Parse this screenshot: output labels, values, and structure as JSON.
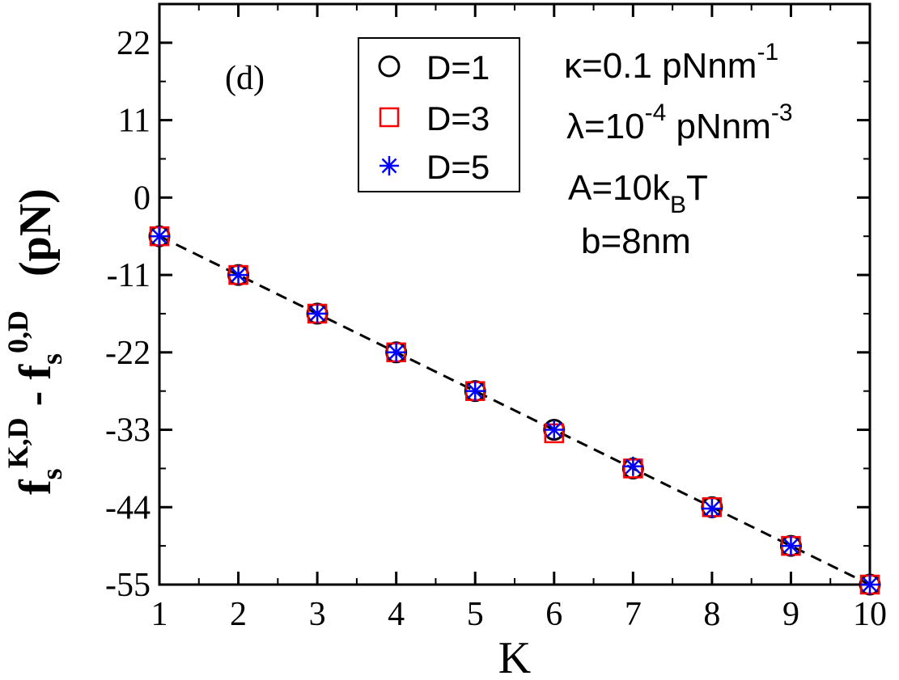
{
  "chart_data": {
    "type": "scatter",
    "panel_label": "(d)",
    "xlabel": "K",
    "ylabel": {
      "f1": "f",
      "sub1": "s",
      "sup1": "K,D",
      "minus": " - ",
      "f2": "f",
      "sub2": "s",
      "sup2": "0,D",
      "unit": "(pN)"
    },
    "xlim": [
      1,
      10
    ],
    "ylim": [
      -55,
      27.5
    ],
    "x_ticks": [
      1,
      2,
      3,
      4,
      5,
      6,
      7,
      8,
      9,
      10
    ],
    "y_ticks": [
      -55,
      -44,
      -33,
      -22,
      -11,
      0,
      11,
      22
    ],
    "fit_line": {
      "style": "dashed",
      "color": "#000000",
      "x": [
        1,
        10
      ],
      "y": [
        -5.5,
        -55
      ]
    },
    "series": [
      {
        "name": "D=1",
        "marker": "circle",
        "color": "#000000",
        "x": [
          1,
          2,
          3,
          4,
          5,
          6,
          7,
          8,
          9,
          10
        ],
        "y": [
          -5.5,
          -11,
          -16.5,
          -22,
          -27.5,
          -33,
          -38.5,
          -44,
          -49.5,
          -55
        ]
      },
      {
        "name": "D=3",
        "marker": "square",
        "color": "#ff0000",
        "x": [
          1,
          2,
          3,
          4,
          5,
          6,
          7,
          8,
          9,
          10
        ],
        "y": [
          -5.5,
          -11,
          -16.5,
          -22,
          -27.5,
          -33.5,
          -38.5,
          -44,
          -49.5,
          -55
        ]
      },
      {
        "name": "D=5",
        "marker": "star",
        "color": "#0000ff",
        "x": [
          1,
          2,
          3,
          4,
          5,
          6,
          7,
          8,
          9,
          10
        ],
        "y": [
          -5.5,
          -11,
          -16.5,
          -22,
          -27.5,
          -33,
          -38.2,
          -44.2,
          -49.5,
          -55
        ]
      }
    ],
    "legend": {
      "placement": "top-center"
    },
    "annotations": {
      "kappa": {
        "base": "κ=0.1 pNnm",
        "sup": "-1"
      },
      "lambda": {
        "pre": "λ=10",
        "sup": "-4",
        "post": " pNnm",
        "sup2": "-3"
      },
      "A": {
        "pre": "A=10k",
        "sub": "B",
        "post": "T"
      },
      "b": "b=8nm"
    }
  }
}
